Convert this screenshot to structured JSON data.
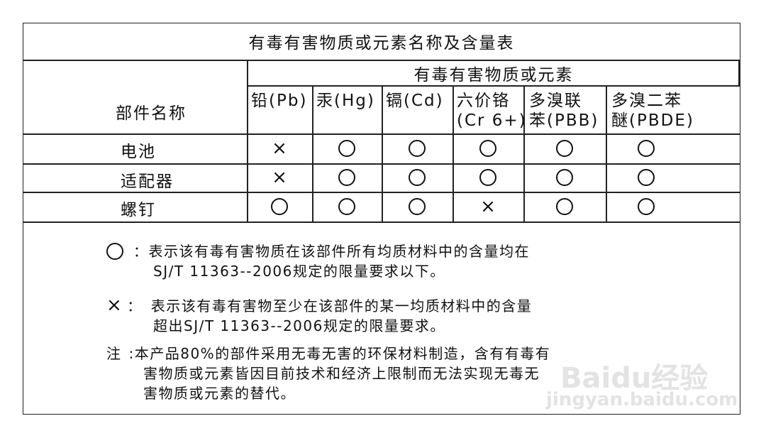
{
  "title": "有毒有害物质或元素名称及含量表",
  "part_header": "部件名称",
  "substance_group": "有毒有害物质或元素",
  "columns": [
    {
      "l1": "铅(Pb)",
      "l2": ""
    },
    {
      "l1": "汞(Hg)",
      "l2": ""
    },
    {
      "l1": "镉(Cd)",
      "l2": ""
    },
    {
      "l1": "六价铬",
      "l2": "(Cr 6+)"
    },
    {
      "l1": "多溴联",
      "l2": "苯(PBB)"
    },
    {
      "l1": "多溴二苯",
      "l2": "醚(PBDE)"
    }
  ],
  "rows": [
    {
      "part": "电池",
      "marks": [
        "x",
        "o",
        "o",
        "o",
        "o",
        "o"
      ]
    },
    {
      "part": "适配器",
      "marks": [
        "x",
        "o",
        "o",
        "o",
        "o",
        "o"
      ]
    },
    {
      "part": "螺钉",
      "marks": [
        "o",
        "o",
        "o",
        "x",
        "o",
        "o"
      ]
    }
  ],
  "notes": {
    "circle_sep": "：",
    "circle_l1": "表示该有毒有害物质在该部件所有均质材料中的含量均在",
    "circle_l2": "SJ/T 11363--2006规定的限量要求以下。",
    "cross_symbol": "×",
    "cross_sep": "：",
    "cross_l1": "表示该有毒有害物至少在该部件的某一均质材料中的含量",
    "cross_l2": "超出SJ/T 11363--2006规定的限量要求。",
    "note_label": "注",
    "note_l1": ":本产品80%的部件采用无毒无害的环保材料制造，含有有毒有",
    "note_l2": "害物质或元素皆因目前技术和经济上限制而无法实现无毒无",
    "note_l3": "害物质或元素的替代。"
  },
  "watermark": {
    "brand": "Baidu经验",
    "url": "jingyan.baidu.com"
  }
}
